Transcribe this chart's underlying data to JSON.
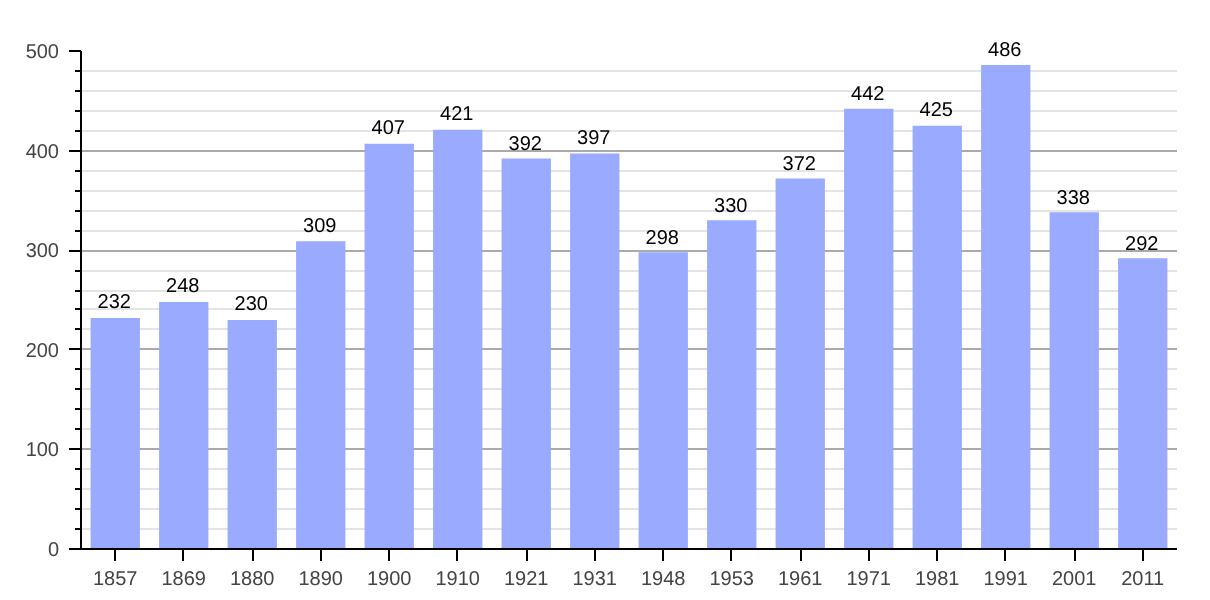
{
  "chart_data": {
    "type": "bar",
    "categories": [
      "1857",
      "1869",
      "1880",
      "1890",
      "1900",
      "1910",
      "1921",
      "1931",
      "1948",
      "1953",
      "1961",
      "1971",
      "1981",
      "1991",
      "2001",
      "2011"
    ],
    "values": [
      232,
      248,
      230,
      309,
      407,
      421,
      392,
      397,
      298,
      330,
      372,
      442,
      425,
      486,
      338,
      292
    ],
    "color": "#99aaff",
    "ylim": [
      0,
      500
    ],
    "yticks": [
      0,
      100,
      200,
      300,
      400,
      500
    ],
    "grid": "y",
    "data_labels": true
  }
}
